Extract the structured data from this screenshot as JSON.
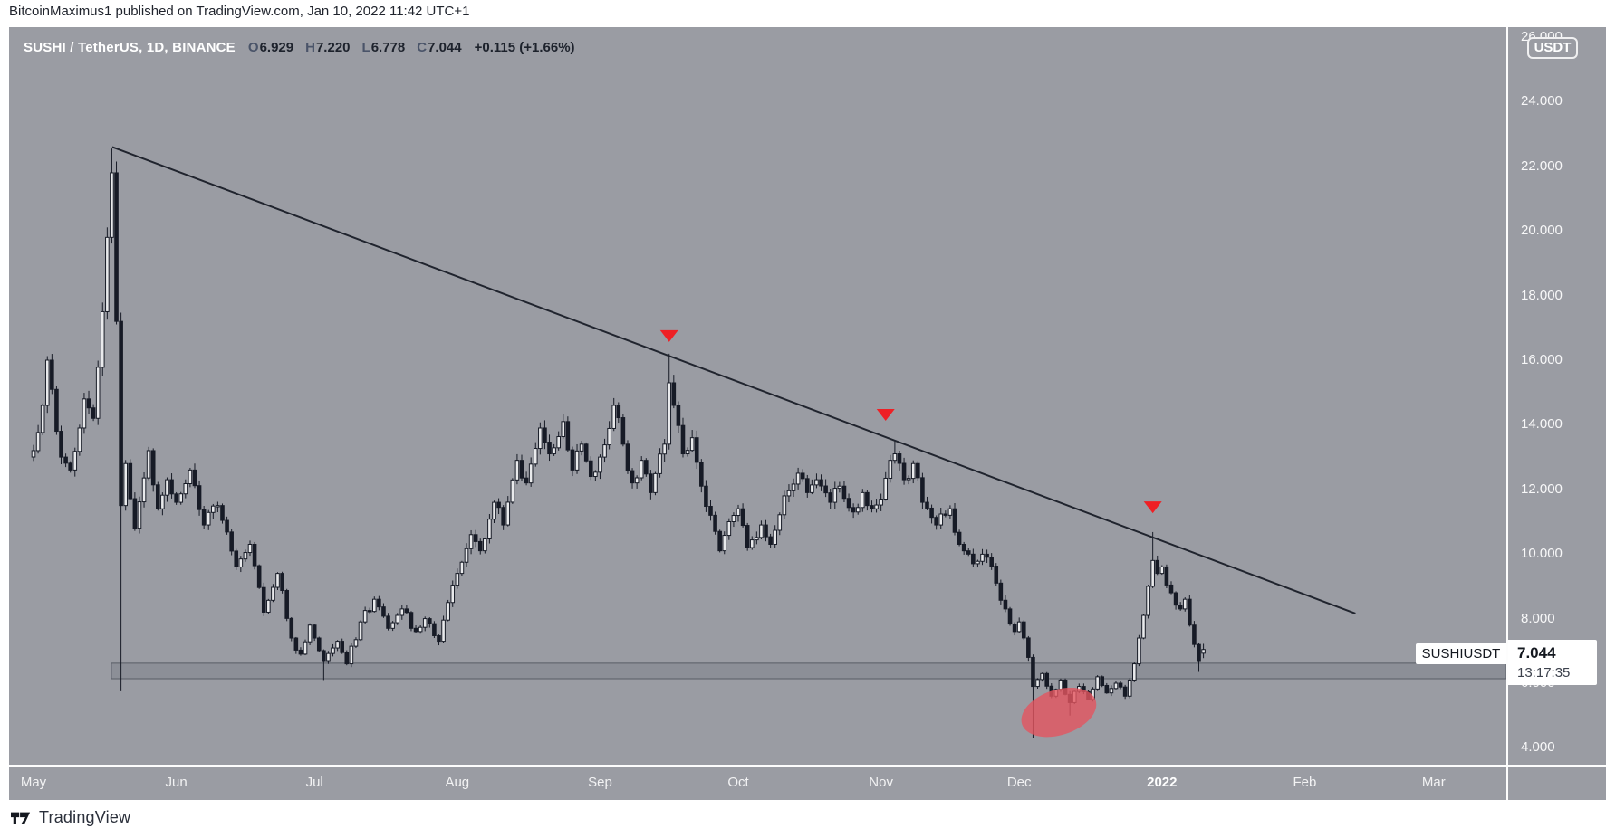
{
  "byline": "BitcoinMaximus1 published on TradingView.com, Jan 10, 2022 11:42 UTC+1",
  "header": {
    "symbol_title": "SUSHI / TetherUS, 1D, BINANCE",
    "ohlc": [
      {
        "label": "O",
        "value": "6.929"
      },
      {
        "label": "H",
        "value": "7.220"
      },
      {
        "label": "L",
        "value": "6.778"
      },
      {
        "label": "C",
        "value": "7.044"
      }
    ],
    "change": "+0.115 (+1.66%)"
  },
  "price_axis": {
    "unit_badge": "USDT",
    "labels": [
      {
        "text": "26.000",
        "value": 26
      },
      {
        "text": "24.000",
        "value": 24
      },
      {
        "text": "22.000",
        "value": 22
      },
      {
        "text": "20.000",
        "value": 20
      },
      {
        "text": "18.000",
        "value": 18
      },
      {
        "text": "16.000",
        "value": 16
      },
      {
        "text": "14.000",
        "value": 14
      },
      {
        "text": "12.000",
        "value": 12
      },
      {
        "text": "10.000",
        "value": 10
      },
      {
        "text": "8.000",
        "value": 8
      },
      {
        "text": "6.000",
        "value": 6
      },
      {
        "text": "4.000",
        "value": 4
      }
    ]
  },
  "price_label": {
    "symbol": "SUSHIUSDT",
    "price": "7.044",
    "countdown": "13:17:35"
  },
  "footer": {
    "brand": "TradingView"
  },
  "colors": {
    "chart_bg": "#9a9ca3",
    "candle_dark": "#171b26",
    "candle_up_fill": "#e9eaec",
    "trendline": "#20242e",
    "marker_red": "#ee2025",
    "ellipse_red": "rgba(227,85,95,0.8)",
    "zone_fill": "rgba(125,128,138,0.45)",
    "zone_stroke": "rgba(82,86,96,0.9)"
  },
  "chart_data": {
    "type": "candlestick",
    "title": "SUSHI / TetherUS, 1D, BINANCE",
    "symbol": "SUSHIUSDT",
    "exchange": "BINANCE",
    "interval": "1D",
    "quote_unit": "USDT",
    "y_axis": {
      "min": 4,
      "max": 26,
      "step": 2,
      "visible_range": [
        3.5,
        26.3
      ]
    },
    "x_axis_days_visible": [
      -5,
      320
    ],
    "months": [
      {
        "label": "May",
        "day": 0
      },
      {
        "label": "Jun",
        "day": 31
      },
      {
        "label": "Jul",
        "day": 61
      },
      {
        "label": "Aug",
        "day": 92
      },
      {
        "label": "Sep",
        "day": 123
      },
      {
        "label": "Oct",
        "day": 153
      },
      {
        "label": "Nov",
        "day": 184
      },
      {
        "label": "Dec",
        "day": 214
      },
      {
        "label": "2022",
        "day": 245,
        "year": true
      },
      {
        "label": "Feb",
        "day": 276
      },
      {
        "label": "Mar",
        "day": 304
      }
    ],
    "close_anchors": [
      [
        0,
        13.2
      ],
      [
        2,
        14.6
      ],
      [
        3,
        16.0
      ],
      [
        5,
        13.8
      ],
      [
        6,
        13.0
      ],
      [
        8,
        12.6
      ],
      [
        10,
        13.9
      ],
      [
        11,
        14.8
      ],
      [
        13,
        14.2
      ],
      [
        15,
        17.5
      ],
      [
        16,
        19.8
      ],
      [
        17,
        21.8
      ],
      [
        18,
        17.2
      ],
      [
        19,
        11.5
      ],
      [
        20,
        12.8
      ],
      [
        22,
        10.8
      ],
      [
        25,
        13.2
      ],
      [
        27,
        11.4
      ],
      [
        29,
        12.3
      ],
      [
        31,
        11.6
      ],
      [
        34,
        12.6
      ],
      [
        37,
        10.9
      ],
      [
        40,
        11.5
      ],
      [
        44,
        9.6
      ],
      [
        47,
        10.3
      ],
      [
        50,
        8.2
      ],
      [
        53,
        9.4
      ],
      [
        56,
        7.4
      ],
      [
        58,
        6.9
      ],
      [
        60,
        7.8
      ],
      [
        61,
        7.4
      ],
      [
        63,
        6.7
      ],
      [
        66,
        7.3
      ],
      [
        68,
        6.6
      ],
      [
        71,
        7.9
      ],
      [
        74,
        8.6
      ],
      [
        77,
        7.7
      ],
      [
        80,
        8.3
      ],
      [
        83,
        7.6
      ],
      [
        85,
        8.0
      ],
      [
        88,
        7.3
      ],
      [
        90,
        8.5
      ],
      [
        92,
        9.4
      ],
      [
        95,
        10.6
      ],
      [
        97,
        10.1
      ],
      [
        100,
        11.6
      ],
      [
        102,
        10.9
      ],
      [
        105,
        12.9
      ],
      [
        107,
        12.2
      ],
      [
        110,
        13.9
      ],
      [
        112,
        13.1
      ],
      [
        115,
        14.1
      ],
      [
        117,
        12.6
      ],
      [
        119,
        13.4
      ],
      [
        121,
        12.4
      ],
      [
        123,
        13.0
      ],
      [
        126,
        14.6
      ],
      [
        128,
        13.4
      ],
      [
        130,
        12.2
      ],
      [
        132,
        12.9
      ],
      [
        134,
        11.9
      ],
      [
        137,
        13.4
      ],
      [
        138,
        15.3
      ],
      [
        139,
        14.6
      ],
      [
        141,
        13.1
      ],
      [
        143,
        13.6
      ],
      [
        145,
        12.1
      ],
      [
        147,
        11.2
      ],
      [
        149,
        10.1
      ],
      [
        151,
        11.0
      ],
      [
        153,
        11.4
      ],
      [
        155,
        10.2
      ],
      [
        158,
        10.9
      ],
      [
        160,
        10.3
      ],
      [
        163,
        11.8
      ],
      [
        166,
        12.5
      ],
      [
        168,
        11.9
      ],
      [
        170,
        12.3
      ],
      [
        173,
        11.6
      ],
      [
        175,
        12.1
      ],
      [
        178,
        11.3
      ],
      [
        180,
        11.9
      ],
      [
        182,
        11.4
      ],
      [
        184,
        11.7
      ],
      [
        186,
        12.9
      ],
      [
        187,
        13.1
      ],
      [
        189,
        12.3
      ],
      [
        191,
        12.8
      ],
      [
        193,
        11.6
      ],
      [
        196,
        10.9
      ],
      [
        199,
        11.4
      ],
      [
        201,
        10.3
      ],
      [
        204,
        9.7
      ],
      [
        207,
        9.9
      ],
      [
        209,
        9.1
      ],
      [
        211,
        8.3
      ],
      [
        213,
        7.6
      ],
      [
        214,
        7.9
      ],
      [
        216,
        6.8
      ],
      [
        217,
        5.9
      ],
      [
        219,
        6.3
      ],
      [
        221,
        5.6
      ],
      [
        223,
        6.1
      ],
      [
        225,
        5.4
      ],
      [
        227,
        5.9
      ],
      [
        229,
        5.5
      ],
      [
        231,
        6.2
      ],
      [
        233,
        5.7
      ],
      [
        235,
        6.0
      ],
      [
        237,
        5.6
      ],
      [
        239,
        6.6
      ],
      [
        240,
        7.4
      ],
      [
        241,
        8.1
      ],
      [
        242,
        9.0
      ],
      [
        243,
        9.8
      ],
      [
        244,
        9.4
      ],
      [
        245,
        9.6
      ],
      [
        247,
        8.8
      ],
      [
        249,
        8.3
      ],
      [
        250,
        8.6
      ],
      [
        251,
        7.8
      ],
      [
        252,
        7.2
      ],
      [
        253,
        6.7
      ],
      [
        254,
        7.044
      ]
    ],
    "wick_spikes": {
      "17": {
        "h": 22.55
      },
      "19": {
        "l": 5.75
      },
      "63": {
        "l": 6.1
      },
      "138": {
        "h": 16.2
      },
      "187": {
        "h": 13.5
      },
      "217": {
        "l": 4.3
      },
      "225": {
        "l": 5.0
      },
      "243": {
        "h": 10.68
      },
      "253": {
        "l": 6.35
      }
    },
    "last_candle": {
      "o": 6.929,
      "h": 7.22,
      "l": 6.778,
      "c": 7.044,
      "change": 0.115,
      "change_pct": 1.66
    },
    "trendline": {
      "from": {
        "day": 17.1,
        "price": 22.6
      },
      "to": {
        "day": 287,
        "price": 8.16
      }
    },
    "support_zone": {
      "price_top": 6.62,
      "price_bottom": 6.14,
      "from_day": 16.9,
      "to_day": 319.7
    },
    "sell_markers": [
      {
        "day": 138,
        "price": 16.76
      },
      {
        "day": 185,
        "price": 14.32
      },
      {
        "day": 243,
        "price": 11.46
      }
    ],
    "highlight_ellipse": {
      "day": 222.6,
      "price": 5.1,
      "rx_days": 8.4,
      "ry_price": 0.7,
      "rotate_deg": -18
    }
  }
}
